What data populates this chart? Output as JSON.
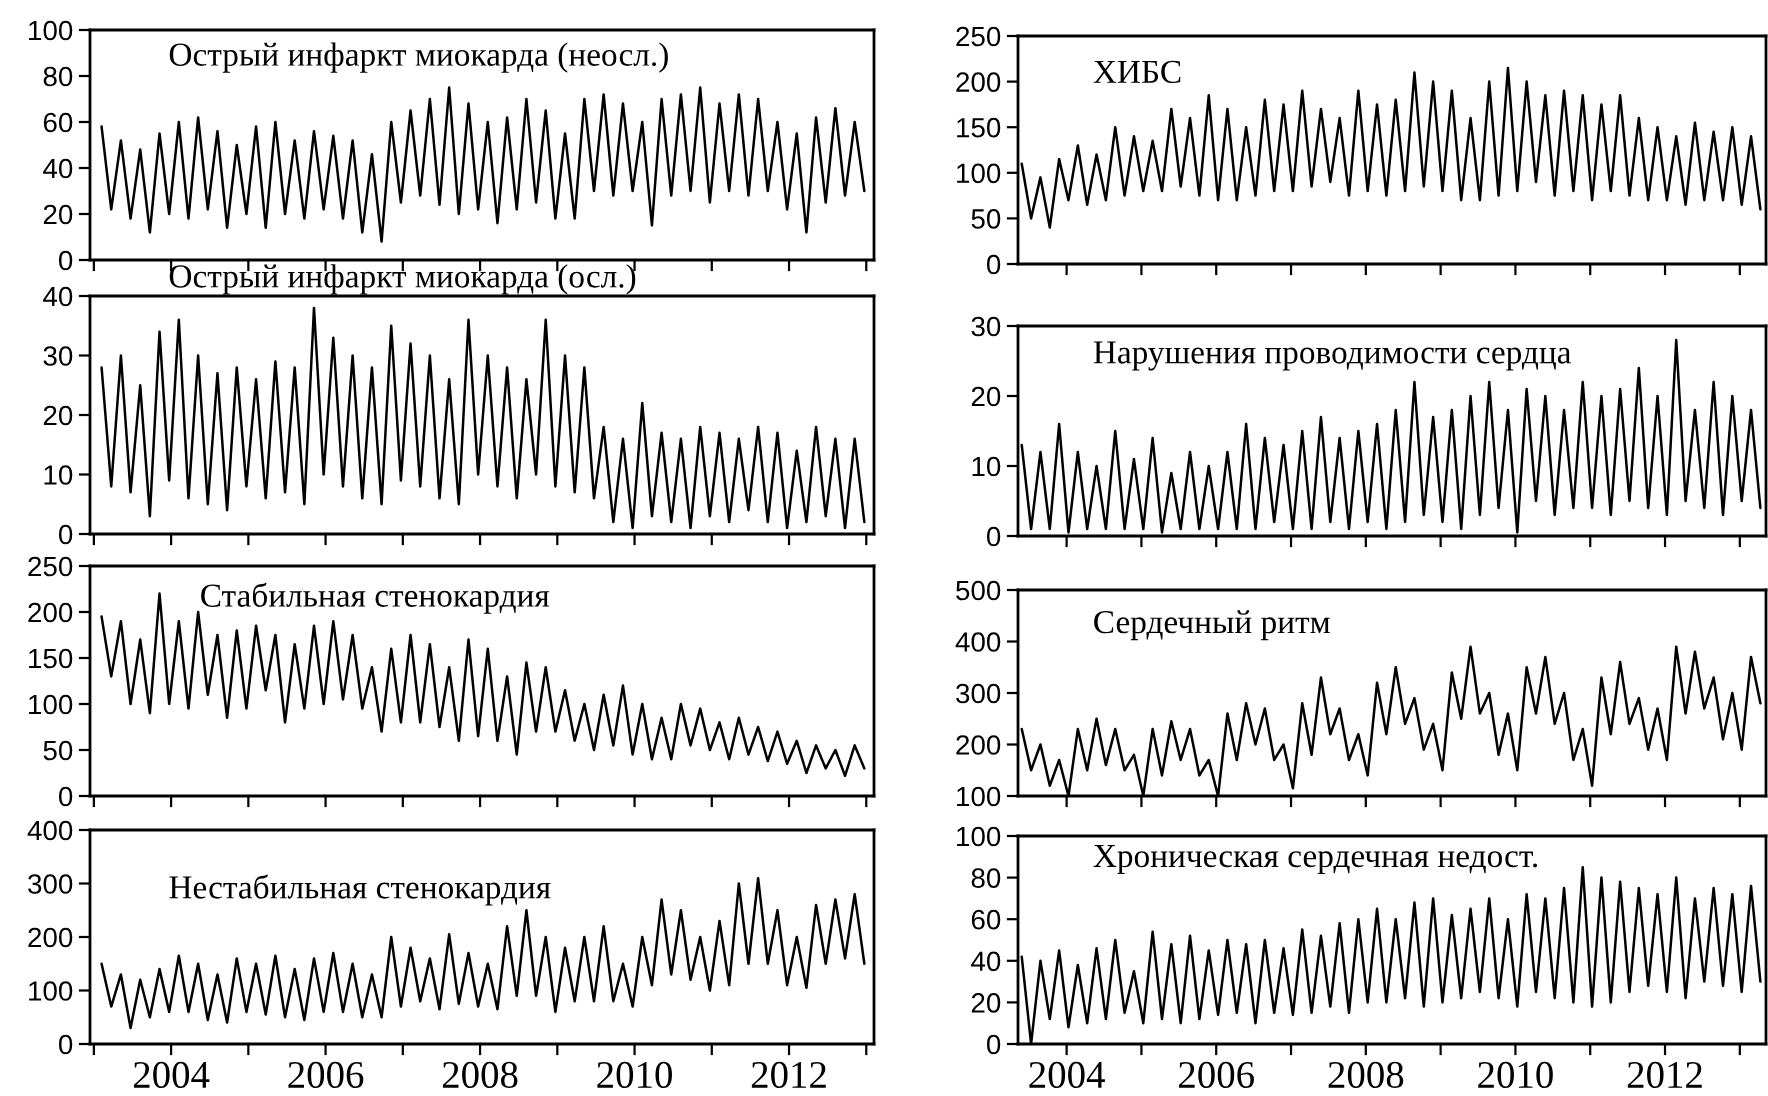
{
  "chart_data": [
    {
      "type": "line",
      "title": "Острый инфаркт миокарда (неосл.)",
      "tick_labels": "y",
      "xlim": [
        2002.95,
        2013.1
      ],
      "xticks": [
        {
          "value": 2003,
          "label": null
        },
        {
          "value": 2004,
          "label": null
        },
        {
          "value": 2005,
          "label": null
        },
        {
          "value": 2006,
          "label": null
        },
        {
          "value": 2007,
          "label": null
        },
        {
          "value": 2008,
          "label": null
        },
        {
          "value": 2009,
          "label": null
        },
        {
          "value": 2010,
          "label": null
        },
        {
          "value": 2011,
          "label": null
        },
        {
          "value": 2012,
          "label": null
        },
        {
          "value": 2013,
          "label": null
        }
      ],
      "ylim": [
        0,
        100
      ],
      "yticks": [
        0,
        20,
        40,
        60,
        80,
        100
      ],
      "grid": false,
      "x": [
        2003.1,
        2003.225,
        2003.35,
        2003.475,
        2003.6,
        2003.725,
        2003.85,
        2003.975,
        2004.1,
        2004.225,
        2004.35,
        2004.475,
        2004.6,
        2004.725,
        2004.85,
        2004.975,
        2005.1,
        2005.225,
        2005.35,
        2005.475,
        2005.6,
        2005.725,
        2005.85,
        2005.975,
        2006.1,
        2006.225,
        2006.35,
        2006.475,
        2006.6,
        2006.725,
        2006.85,
        2006.975,
        2007.1,
        2007.225,
        2007.35,
        2007.475,
        2007.6,
        2007.725,
        2007.85,
        2007.975,
        2008.1,
        2008.225,
        2008.35,
        2008.475,
        2008.6,
        2008.725,
        2008.85,
        2008.975,
        2009.1,
        2009.225,
        2009.35,
        2009.475,
        2009.6,
        2009.725,
        2009.85,
        2009.975,
        2010.1,
        2010.225,
        2010.35,
        2010.475,
        2010.6,
        2010.725,
        2010.85,
        2010.975,
        2011.1,
        2011.225,
        2011.35,
        2011.475,
        2011.6,
        2011.725,
        2011.85,
        2011.975,
        2012.1,
        2012.225,
        2012.35,
        2012.475,
        2012.6,
        2012.725,
        2012.85,
        2012.975
      ],
      "series": [
        {
          "color": "#000000",
          "values": [
            58,
            22,
            52,
            18,
            48,
            12,
            55,
            20,
            60,
            18,
            62,
            22,
            56,
            14,
            50,
            20,
            58,
            14,
            60,
            20,
            52,
            18,
            56,
            22,
            54,
            18,
            52,
            12,
            46,
            8,
            60,
            25,
            65,
            28,
            70,
            24,
            75,
            20,
            68,
            22,
            60,
            16,
            62,
            22,
            70,
            25,
            65,
            18,
            55,
            18,
            70,
            30,
            72,
            28,
            68,
            30,
            60,
            15,
            70,
            28,
            72,
            30,
            75,
            25,
            68,
            30,
            72,
            28,
            70,
            30,
            60,
            22,
            55,
            12,
            62,
            25,
            66,
            28,
            60,
            30
          ]
        }
      ]
    },
    {
      "type": "line",
      "title": "Острый инфаркт миокарда (осл.)",
      "tick_labels": "y",
      "xlim": [
        2002.95,
        2013.1
      ],
      "xticks": [
        {
          "value": 2003,
          "label": null
        },
        {
          "value": 2004,
          "label": null
        },
        {
          "value": 2005,
          "label": null
        },
        {
          "value": 2006,
          "label": null
        },
        {
          "value": 2007,
          "label": null
        },
        {
          "value": 2008,
          "label": null
        },
        {
          "value": 2009,
          "label": null
        },
        {
          "value": 2010,
          "label": null
        },
        {
          "value": 2011,
          "label": null
        },
        {
          "value": 2012,
          "label": null
        },
        {
          "value": 2013,
          "label": null
        }
      ],
      "ylim": [
        0,
        40
      ],
      "yticks": [
        0,
        10,
        20,
        30,
        40
      ],
      "grid": false,
      "x": [
        2003.1,
        2003.225,
        2003.35,
        2003.475,
        2003.6,
        2003.725,
        2003.85,
        2003.975,
        2004.1,
        2004.225,
        2004.35,
        2004.475,
        2004.6,
        2004.725,
        2004.85,
        2004.975,
        2005.1,
        2005.225,
        2005.35,
        2005.475,
        2005.6,
        2005.725,
        2005.85,
        2005.975,
        2006.1,
        2006.225,
        2006.35,
        2006.475,
        2006.6,
        2006.725,
        2006.85,
        2006.975,
        2007.1,
        2007.225,
        2007.35,
        2007.475,
        2007.6,
        2007.725,
        2007.85,
        2007.975,
        2008.1,
        2008.225,
        2008.35,
        2008.475,
        2008.6,
        2008.725,
        2008.85,
        2008.975,
        2009.1,
        2009.225,
        2009.35,
        2009.475,
        2009.6,
        2009.725,
        2009.85,
        2009.975,
        2010.1,
        2010.225,
        2010.35,
        2010.475,
        2010.6,
        2010.725,
        2010.85,
        2010.975,
        2011.1,
        2011.225,
        2011.35,
        2011.475,
        2011.6,
        2011.725,
        2011.85,
        2011.975,
        2012.1,
        2012.225,
        2012.35,
        2012.475,
        2012.6,
        2012.725,
        2012.85,
        2012.975
      ],
      "series": [
        {
          "color": "#000000",
          "values": [
            28,
            8,
            30,
            7,
            25,
            3,
            34,
            9,
            36,
            6,
            30,
            5,
            27,
            4,
            28,
            8,
            26,
            6,
            29,
            7,
            28,
            5,
            38,
            10,
            33,
            8,
            30,
            6,
            28,
            5,
            35,
            9,
            32,
            8,
            30,
            6,
            26,
            5,
            36,
            10,
            30,
            8,
            28,
            6,
            26,
            10,
            36,
            8,
            30,
            7,
            28,
            6,
            18,
            2,
            16,
            1,
            22,
            3,
            17,
            2,
            16,
            1,
            18,
            3,
            17,
            2,
            16,
            4,
            18,
            2,
            17,
            1,
            14,
            2,
            18,
            3,
            16,
            1,
            16,
            2
          ]
        }
      ]
    },
    {
      "type": "line",
      "title": "Стабильная стенокардия",
      "tick_labels": "y",
      "xlim": [
        2002.95,
        2013.1
      ],
      "xticks": [
        {
          "value": 2003,
          "label": null
        },
        {
          "value": 2004,
          "label": null
        },
        {
          "value": 2005,
          "label": null
        },
        {
          "value": 2006,
          "label": null
        },
        {
          "value": 2007,
          "label": null
        },
        {
          "value": 2008,
          "label": null
        },
        {
          "value": 2009,
          "label": null
        },
        {
          "value": 2010,
          "label": null
        },
        {
          "value": 2011,
          "label": null
        },
        {
          "value": 2012,
          "label": null
        },
        {
          "value": 2013,
          "label": null
        }
      ],
      "ylim": [
        0,
        250
      ],
      "yticks": [
        0,
        50,
        100,
        150,
        200,
        250
      ],
      "grid": false,
      "x": [
        2003.1,
        2003.225,
        2003.35,
        2003.475,
        2003.6,
        2003.725,
        2003.85,
        2003.975,
        2004.1,
        2004.225,
        2004.35,
        2004.475,
        2004.6,
        2004.725,
        2004.85,
        2004.975,
        2005.1,
        2005.225,
        2005.35,
        2005.475,
        2005.6,
        2005.725,
        2005.85,
        2005.975,
        2006.1,
        2006.225,
        2006.35,
        2006.475,
        2006.6,
        2006.725,
        2006.85,
        2006.975,
        2007.1,
        2007.225,
        2007.35,
        2007.475,
        2007.6,
        2007.725,
        2007.85,
        2007.975,
        2008.1,
        2008.225,
        2008.35,
        2008.475,
        2008.6,
        2008.725,
        2008.85,
        2008.975,
        2009.1,
        2009.225,
        2009.35,
        2009.475,
        2009.6,
        2009.725,
        2009.85,
        2009.975,
        2010.1,
        2010.225,
        2010.35,
        2010.475,
        2010.6,
        2010.725,
        2010.85,
        2010.975,
        2011.1,
        2011.225,
        2011.35,
        2011.475,
        2011.6,
        2011.725,
        2011.85,
        2011.975,
        2012.1,
        2012.225,
        2012.35,
        2012.475,
        2012.6,
        2012.725,
        2012.85,
        2012.975
      ],
      "series": [
        {
          "color": "#000000",
          "values": [
            195,
            130,
            190,
            100,
            170,
            90,
            220,
            100,
            190,
            95,
            200,
            110,
            175,
            85,
            180,
            95,
            185,
            115,
            175,
            80,
            165,
            95,
            185,
            100,
            190,
            105,
            175,
            95,
            140,
            70,
            160,
            80,
            175,
            80,
            165,
            75,
            140,
            60,
            170,
            65,
            160,
            60,
            130,
            45,
            145,
            70,
            140,
            70,
            115,
            60,
            100,
            50,
            110,
            55,
            120,
            45,
            100,
            40,
            85,
            40,
            100,
            55,
            95,
            50,
            80,
            40,
            85,
            45,
            75,
            38,
            70,
            35,
            60,
            25,
            55,
            30,
            50,
            22,
            55,
            30
          ]
        }
      ]
    },
    {
      "type": "line",
      "title": "Нестабильная стенокардия",
      "xlim": [
        2002.95,
        2013.1
      ],
      "xticks": [
        {
          "value": 2003,
          "label": null
        },
        2004,
        {
          "value": 2005,
          "label": null
        },
        2006,
        {
          "value": 2007,
          "label": null
        },
        2008,
        {
          "value": 2009,
          "label": null
        },
        2010,
        {
          "value": 2011,
          "label": null
        },
        2012,
        {
          "value": 2013,
          "label": null
        }
      ],
      "ylim": [
        0,
        400
      ],
      "yticks": [
        0,
        100,
        200,
        300,
        400
      ],
      "grid": false,
      "x": [
        2003.1,
        2003.225,
        2003.35,
        2003.475,
        2003.6,
        2003.725,
        2003.85,
        2003.975,
        2004.1,
        2004.225,
        2004.35,
        2004.475,
        2004.6,
        2004.725,
        2004.85,
        2004.975,
        2005.1,
        2005.225,
        2005.35,
        2005.475,
        2005.6,
        2005.725,
        2005.85,
        2005.975,
        2006.1,
        2006.225,
        2006.35,
        2006.475,
        2006.6,
        2006.725,
        2006.85,
        2006.975,
        2007.1,
        2007.225,
        2007.35,
        2007.475,
        2007.6,
        2007.725,
        2007.85,
        2007.975,
        2008.1,
        2008.225,
        2008.35,
        2008.475,
        2008.6,
        2008.725,
        2008.85,
        2008.975,
        2009.1,
        2009.225,
        2009.35,
        2009.475,
        2009.6,
        2009.725,
        2009.85,
        2009.975,
        2010.1,
        2010.225,
        2010.35,
        2010.475,
        2010.6,
        2010.725,
        2010.85,
        2010.975,
        2011.1,
        2011.225,
        2011.35,
        2011.475,
        2011.6,
        2011.725,
        2011.85,
        2011.975,
        2012.1,
        2012.225,
        2012.35,
        2012.475,
        2012.6,
        2012.725,
        2012.85,
        2012.975
      ],
      "series": [
        {
          "color": "#000000",
          "values": [
            150,
            70,
            130,
            30,
            120,
            50,
            140,
            60,
            165,
            60,
            150,
            45,
            130,
            40,
            160,
            60,
            150,
            55,
            165,
            50,
            140,
            45,
            160,
            60,
            170,
            60,
            150,
            50,
            130,
            50,
            200,
            70,
            180,
            80,
            160,
            65,
            205,
            75,
            170,
            70,
            150,
            65,
            220,
            90,
            250,
            90,
            200,
            60,
            180,
            80,
            200,
            80,
            220,
            80,
            150,
            70,
            200,
            110,
            270,
            130,
            250,
            120,
            200,
            100,
            230,
            110,
            300,
            150,
            310,
            150,
            250,
            110,
            200,
            105,
            260,
            150,
            270,
            160,
            280,
            150
          ]
        }
      ]
    },
    {
      "type": "line",
      "title": "ХИБС",
      "tick_labels": "y",
      "xlim": [
        2003.35,
        2013.35
      ],
      "xticks": [
        {
          "value": 2004,
          "label": null
        },
        {
          "value": 2005,
          "label": null
        },
        {
          "value": 2006,
          "label": null
        },
        {
          "value": 2007,
          "label": null
        },
        {
          "value": 2008,
          "label": null
        },
        {
          "value": 2009,
          "label": null
        },
        {
          "value": 2010,
          "label": null
        },
        {
          "value": 2011,
          "label": null
        },
        {
          "value": 2012,
          "label": null
        },
        {
          "value": 2013,
          "label": null
        }
      ],
      "ylim": [
        0,
        250
      ],
      "yticks": [
        0,
        50,
        100,
        150,
        200,
        250
      ],
      "grid": false,
      "x": [
        2003.4,
        2003.525,
        2003.65,
        2003.775,
        2003.9,
        2004.025,
        2004.15,
        2004.275,
        2004.4,
        2004.525,
        2004.65,
        2004.775,
        2004.9,
        2005.025,
        2005.15,
        2005.275,
        2005.4,
        2005.525,
        2005.65,
        2005.775,
        2005.9,
        2006.025,
        2006.15,
        2006.275,
        2006.4,
        2006.525,
        2006.65,
        2006.775,
        2006.9,
        2007.025,
        2007.15,
        2007.275,
        2007.4,
        2007.525,
        2007.65,
        2007.775,
        2007.9,
        2008.025,
        2008.15,
        2008.275,
        2008.4,
        2008.525,
        2008.65,
        2008.775,
        2008.9,
        2009.025,
        2009.15,
        2009.275,
        2009.4,
        2009.525,
        2009.65,
        2009.775,
        2009.9,
        2010.025,
        2010.15,
        2010.275,
        2010.4,
        2010.525,
        2010.65,
        2010.775,
        2010.9,
        2011.025,
        2011.15,
        2011.275,
        2011.4,
        2011.525,
        2011.65,
        2011.775,
        2011.9,
        2012.025,
        2012.15,
        2012.275,
        2012.4,
        2012.525,
        2012.65,
        2012.775,
        2012.9,
        2013.025,
        2013.15,
        2013.275
      ],
      "series": [
        {
          "color": "#000000",
          "values": [
            110,
            50,
            95,
            40,
            115,
            70,
            130,
            65,
            120,
            70,
            150,
            75,
            140,
            80,
            135,
            80,
            170,
            85,
            160,
            75,
            185,
            70,
            170,
            70,
            150,
            75,
            180,
            80,
            175,
            80,
            190,
            85,
            170,
            90,
            160,
            75,
            190,
            80,
            175,
            75,
            180,
            80,
            210,
            85,
            200,
            80,
            190,
            70,
            160,
            70,
            200,
            75,
            215,
            80,
            200,
            90,
            185,
            75,
            190,
            80,
            185,
            70,
            175,
            80,
            185,
            75,
            160,
            70,
            150,
            70,
            140,
            65,
            155,
            70,
            145,
            70,
            150,
            65,
            140,
            60
          ]
        }
      ]
    },
    {
      "type": "line",
      "title": "Нарушения проводимости сердца",
      "tick_labels": "y",
      "xlim": [
        2003.35,
        2013.35
      ],
      "xticks": [
        {
          "value": 2004,
          "label": null
        },
        {
          "value": 2005,
          "label": null
        },
        {
          "value": 2006,
          "label": null
        },
        {
          "value": 2007,
          "label": null
        },
        {
          "value": 2008,
          "label": null
        },
        {
          "value": 2009,
          "label": null
        },
        {
          "value": 2010,
          "label": null
        },
        {
          "value": 2011,
          "label": null
        },
        {
          "value": 2012,
          "label": null
        },
        {
          "value": 2013,
          "label": null
        }
      ],
      "ylim": [
        0,
        30
      ],
      "yticks": [
        0,
        10,
        20,
        30
      ],
      "grid": false,
      "x": [
        2003.4,
        2003.525,
        2003.65,
        2003.775,
        2003.9,
        2004.025,
        2004.15,
        2004.275,
        2004.4,
        2004.525,
        2004.65,
        2004.775,
        2004.9,
        2005.025,
        2005.15,
        2005.275,
        2005.4,
        2005.525,
        2005.65,
        2005.775,
        2005.9,
        2006.025,
        2006.15,
        2006.275,
        2006.4,
        2006.525,
        2006.65,
        2006.775,
        2006.9,
        2007.025,
        2007.15,
        2007.275,
        2007.4,
        2007.525,
        2007.65,
        2007.775,
        2007.9,
        2008.025,
        2008.15,
        2008.275,
        2008.4,
        2008.525,
        2008.65,
        2008.775,
        2008.9,
        2009.025,
        2009.15,
        2009.275,
        2009.4,
        2009.525,
        2009.65,
        2009.775,
        2009.9,
        2010.025,
        2010.15,
        2010.275,
        2010.4,
        2010.525,
        2010.65,
        2010.775,
        2010.9,
        2011.025,
        2011.15,
        2011.275,
        2011.4,
        2011.525,
        2011.65,
        2011.775,
        2011.9,
        2012.025,
        2012.15,
        2012.275,
        2012.4,
        2012.525,
        2012.65,
        2012.775,
        2012.9,
        2013.025,
        2013.15,
        2013.275
      ],
      "series": [
        {
          "color": "#000000",
          "values": [
            13,
            1,
            12,
            1,
            16,
            0.5,
            12,
            1,
            10,
            1,
            15,
            1,
            11,
            1,
            14,
            0.5,
            9,
            1,
            12,
            1,
            10,
            1,
            12,
            1,
            16,
            1,
            14,
            2,
            13,
            1,
            15,
            1,
            17,
            2,
            14,
            1,
            15,
            2,
            16,
            1,
            18,
            2,
            22,
            3,
            17,
            2,
            18,
            1,
            20,
            3,
            22,
            4,
            18,
            0.5,
            21,
            5,
            20,
            3,
            18,
            4,
            22,
            4,
            20,
            3,
            21,
            5,
            24,
            4,
            20,
            3,
            28,
            5,
            18,
            4,
            22,
            3,
            20,
            5,
            18,
            4
          ]
        }
      ]
    },
    {
      "type": "line",
      "title": "Сердечный ритм",
      "tick_labels": "y",
      "xlim": [
        2003.35,
        2013.35
      ],
      "xticks": [
        {
          "value": 2004,
          "label": null
        },
        {
          "value": 2005,
          "label": null
        },
        {
          "value": 2006,
          "label": null
        },
        {
          "value": 2007,
          "label": null
        },
        {
          "value": 2008,
          "label": null
        },
        {
          "value": 2009,
          "label": null
        },
        {
          "value": 2010,
          "label": null
        },
        {
          "value": 2011,
          "label": null
        },
        {
          "value": 2012,
          "label": null
        },
        {
          "value": 2013,
          "label": null
        }
      ],
      "ylim": [
        100,
        500
      ],
      "yticks": [
        100,
        200,
        300,
        400,
        500
      ],
      "grid": false,
      "x": [
        2003.4,
        2003.525,
        2003.65,
        2003.775,
        2003.9,
        2004.025,
        2004.15,
        2004.275,
        2004.4,
        2004.525,
        2004.65,
        2004.775,
        2004.9,
        2005.025,
        2005.15,
        2005.275,
        2005.4,
        2005.525,
        2005.65,
        2005.775,
        2005.9,
        2006.025,
        2006.15,
        2006.275,
        2006.4,
        2006.525,
        2006.65,
        2006.775,
        2006.9,
        2007.025,
        2007.15,
        2007.275,
        2007.4,
        2007.525,
        2007.65,
        2007.775,
        2007.9,
        2008.025,
        2008.15,
        2008.275,
        2008.4,
        2008.525,
        2008.65,
        2008.775,
        2008.9,
        2009.025,
        2009.15,
        2009.275,
        2009.4,
        2009.525,
        2009.65,
        2009.775,
        2009.9,
        2010.025,
        2010.15,
        2010.275,
        2010.4,
        2010.525,
        2010.65,
        2010.775,
        2010.9,
        2011.025,
        2011.15,
        2011.275,
        2011.4,
        2011.525,
        2011.65,
        2011.775,
        2011.9,
        2012.025,
        2012.15,
        2012.275,
        2012.4,
        2012.525,
        2012.65,
        2012.775,
        2012.9,
        2013.025,
        2013.15,
        2013.275
      ],
      "series": [
        {
          "color": "#000000",
          "values": [
            230,
            150,
            200,
            120,
            170,
            100,
            230,
            150,
            250,
            160,
            230,
            150,
            180,
            100,
            230,
            140,
            245,
            170,
            230,
            140,
            170,
            100,
            260,
            170,
            280,
            200,
            270,
            170,
            200,
            115,
            280,
            180,
            330,
            220,
            270,
            170,
            220,
            140,
            320,
            220,
            350,
            240,
            290,
            190,
            240,
            150,
            340,
            250,
            390,
            260,
            300,
            180,
            260,
            150,
            350,
            260,
            370,
            240,
            300,
            170,
            230,
            120,
            330,
            220,
            360,
            240,
            290,
            190,
            270,
            170,
            390,
            260,
            380,
            270,
            330,
            210,
            300,
            190,
            370,
            280
          ]
        }
      ]
    },
    {
      "type": "line",
      "title": "Хроническая сердечная недост.",
      "xlim": [
        2003.35,
        2013.35
      ],
      "xticks": [
        2004,
        {
          "value": 2005,
          "label": null
        },
        2006,
        {
          "value": 2007,
          "label": null
        },
        2008,
        {
          "value": 2009,
          "label": null
        },
        2010,
        {
          "value": 2011,
          "label": null
        },
        2012,
        {
          "value": 2013,
          "label": null
        }
      ],
      "ylim": [
        0,
        100
      ],
      "yticks": [
        0,
        20,
        40,
        60,
        80,
        100
      ],
      "grid": false,
      "x": [
        2003.4,
        2003.525,
        2003.65,
        2003.775,
        2003.9,
        2004.025,
        2004.15,
        2004.275,
        2004.4,
        2004.525,
        2004.65,
        2004.775,
        2004.9,
        2005.025,
        2005.15,
        2005.275,
        2005.4,
        2005.525,
        2005.65,
        2005.775,
        2005.9,
        2006.025,
        2006.15,
        2006.275,
        2006.4,
        2006.525,
        2006.65,
        2006.775,
        2006.9,
        2007.025,
        2007.15,
        2007.275,
        2007.4,
        2007.525,
        2007.65,
        2007.775,
        2007.9,
        2008.025,
        2008.15,
        2008.275,
        2008.4,
        2008.525,
        2008.65,
        2008.775,
        2008.9,
        2009.025,
        2009.15,
        2009.275,
        2009.4,
        2009.525,
        2009.65,
        2009.775,
        2009.9,
        2010.025,
        2010.15,
        2010.275,
        2010.4,
        2010.525,
        2010.65,
        2010.775,
        2010.9,
        2011.025,
        2011.15,
        2011.275,
        2011.4,
        2011.525,
        2011.65,
        2011.775,
        2011.9,
        2012.025,
        2012.15,
        2012.275,
        2012.4,
        2012.525,
        2012.65,
        2012.775,
        2012.9,
        2013.025,
        2013.15,
        2013.275
      ],
      "series": [
        {
          "color": "#000000",
          "values": [
            42,
            0,
            40,
            12,
            45,
            8,
            38,
            10,
            46,
            12,
            50,
            15,
            35,
            10,
            54,
            12,
            48,
            10,
            52,
            12,
            45,
            14,
            50,
            15,
            48,
            10,
            50,
            15,
            46,
            14,
            55,
            15,
            52,
            18,
            58,
            15,
            60,
            20,
            65,
            20,
            60,
            22,
            68,
            18,
            70,
            20,
            62,
            22,
            65,
            25,
            70,
            22,
            60,
            18,
            72,
            25,
            70,
            22,
            75,
            20,
            85,
            18,
            80,
            20,
            78,
            25,
            75,
            28,
            72,
            25,
            80,
            22,
            70,
            30,
            75,
            28,
            72,
            25,
            76,
            30
          ]
        }
      ]
    }
  ]
}
